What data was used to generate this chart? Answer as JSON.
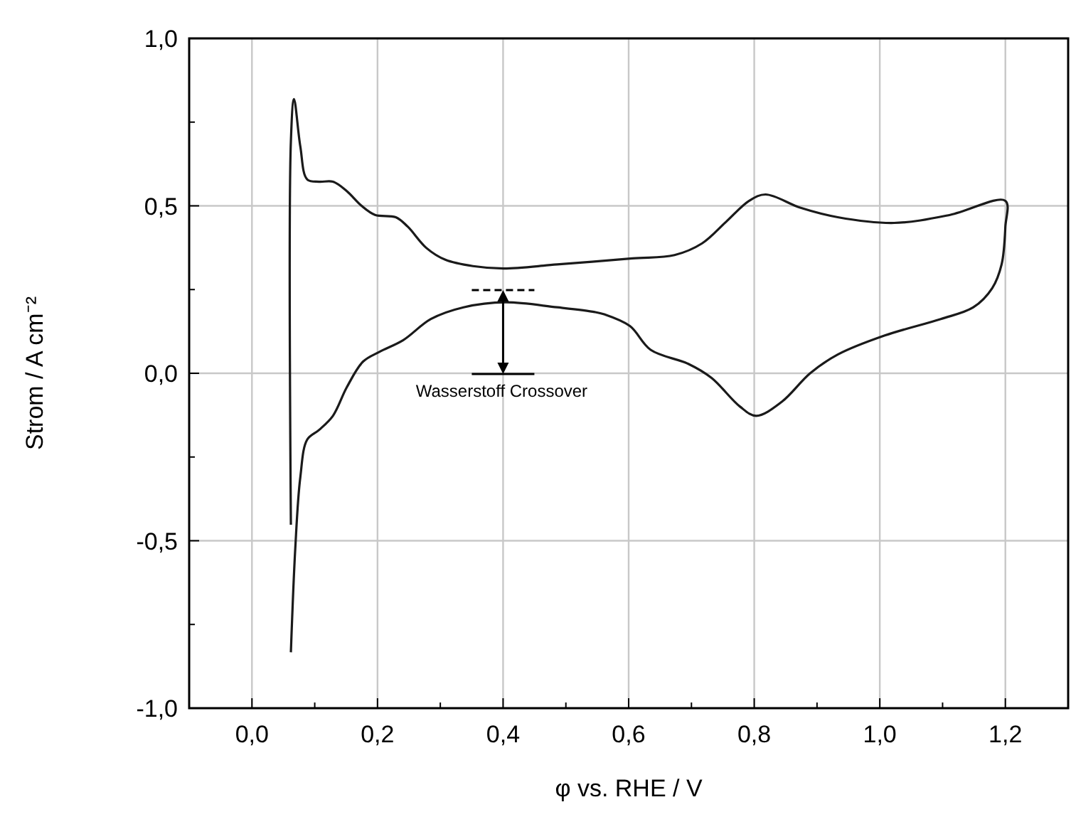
{
  "chart_data": {
    "type": "line",
    "xlabel": "φ vs. RHE / V",
    "ylabel": "Strom / A cm⁻²",
    "xlim": [
      -0.1,
      1.3
    ],
    "ylim": [
      -1.0,
      1.0
    ],
    "xticks": [
      {
        "value": 0,
        "label": "0,0"
      },
      {
        "value": 0.1,
        "label": null
      },
      {
        "value": 0.2,
        "label": "0,2"
      },
      {
        "value": 0.3,
        "label": null
      },
      {
        "value": 0.4,
        "label": "0,4"
      },
      {
        "value": 0.5,
        "label": null
      },
      {
        "value": 0.6,
        "label": "0,6"
      },
      {
        "value": 0.7,
        "label": null
      },
      {
        "value": 0.8,
        "label": "0,8"
      },
      {
        "value": 0.9,
        "label": null
      },
      {
        "value": 1.0,
        "label": "1,0"
      },
      {
        "value": 1.1,
        "label": null
      },
      {
        "value": 1.2,
        "label": "1,2"
      }
    ],
    "yticks": [
      {
        "value": -1.0,
        "label": "-1,0"
      },
      {
        "value": -0.75,
        "label": null
      },
      {
        "value": -0.5,
        "label": "-0,5"
      },
      {
        "value": -0.25,
        "label": null
      },
      {
        "value": 0,
        "label": "0,0"
      },
      {
        "value": 0.25,
        "label": null
      },
      {
        "value": 0.5,
        "label": "0,5"
      },
      {
        "value": 0.75,
        "label": null
      },
      {
        "value": 1.0,
        "label": "1,0"
      }
    ],
    "grid": true,
    "marker": "none",
    "line_style": "solid",
    "series": [
      {
        "color": "#1a1a1a",
        "x": [
          0.062,
          0.062,
          0.067,
          0.077,
          0.088,
          0.107,
          0.129,
          0.151,
          0.174,
          0.196,
          0.229,
          0.248,
          0.278,
          0.308,
          0.352,
          0.401,
          0.486,
          0.606,
          0.673,
          0.717,
          0.755,
          0.792,
          0.818,
          0.874,
          0.933,
          1.023,
          1.112,
          1.2,
          1.2,
          1.194,
          1.179,
          1.149,
          1.097,
          1.008,
          0.933,
          0.889,
          0.844,
          0.803,
          0.777,
          0.732,
          0.695,
          0.635,
          0.602,
          0.561,
          0.546,
          0.486,
          0.404,
          0.337,
          0.285,
          0.241,
          0.203,
          0.177,
          0.151,
          0.129,
          0.107,
          0.088,
          0.077,
          0.069,
          0.062
        ],
        "values": [
          -0.452,
          0.692,
          0.819,
          0.678,
          0.579,
          0.572,
          0.572,
          0.544,
          0.501,
          0.473,
          0.466,
          0.438,
          0.374,
          0.339,
          0.32,
          0.313,
          0.325,
          0.343,
          0.353,
          0.388,
          0.452,
          0.515,
          0.534,
          0.494,
          0.466,
          0.449,
          0.473,
          0.515,
          0.438,
          0.325,
          0.254,
          0.197,
          0.162,
          0.113,
          0.056,
          0.0,
          -0.085,
          -0.127,
          -0.099,
          -0.014,
          0.028,
          0.07,
          0.141,
          0.176,
          0.183,
          0.197,
          0.212,
          0.197,
          0.162,
          0.099,
          0.064,
          0.035,
          -0.042,
          -0.127,
          -0.169,
          -0.198,
          -0.311,
          -0.523,
          -0.833
        ]
      }
    ],
    "annotations": [
      {
        "text": "Wasserstoff Crossover",
        "x": 0.4,
        "y": 0.21
      }
    ]
  }
}
